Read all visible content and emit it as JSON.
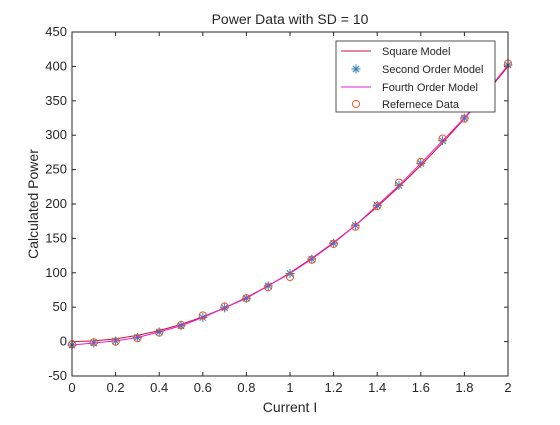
{
  "chart_data": {
    "type": "line",
    "title": "Power Data with SD = 10",
    "xlabel": "Current I",
    "ylabel": "Calculated Power",
    "xlim": [
      0,
      2
    ],
    "ylim": [
      -50,
      450
    ],
    "xticks": [
      0,
      0.2,
      0.4,
      0.6,
      0.8,
      1,
      1.2,
      1.4,
      1.6,
      1.8,
      2
    ],
    "xtick_labels": [
      "0",
      "0.2",
      "0.4",
      "0.6",
      "0.8",
      "1",
      "1.2",
      "1.4",
      "1.6",
      "1.8",
      "2"
    ],
    "yticks": [
      -50,
      0,
      50,
      100,
      150,
      200,
      250,
      300,
      350,
      400,
      450
    ],
    "ytick_labels": [
      "-50",
      "0",
      "50",
      "100",
      "150",
      "200",
      "250",
      "300",
      "350",
      "400",
      "450"
    ],
    "grid": false,
    "legend_position": "top-right",
    "x": [
      0,
      0.1,
      0.2,
      0.3,
      0.4,
      0.5,
      0.6,
      0.7,
      0.8,
      0.9,
      1.0,
      1.1,
      1.2,
      1.3,
      1.4,
      1.5,
      1.6,
      1.7,
      1.8,
      1.9,
      2.0
    ],
    "series": [
      {
        "name": "Square Model",
        "style": "line",
        "color": "#d0103a",
        "values": [
          0,
          1,
          4,
          9,
          16,
          25,
          36,
          49,
          64,
          81,
          100,
          121,
          144,
          169,
          196,
          225,
          256,
          289,
          324,
          361,
          400
        ]
      },
      {
        "name": "Second Order Model",
        "style": "asterisk",
        "color": "#2a7fb8",
        "values": [
          -5,
          -2,
          1,
          6,
          14,
          23,
          35,
          49,
          63,
          81,
          99,
          120,
          143,
          169,
          198,
          227,
          259,
          292,
          325,
          361,
          402
        ]
      },
      {
        "name": "Fourth Order Model",
        "style": "line",
        "color": "#e020d0",
        "values": [
          -5,
          -2,
          1,
          6,
          14,
          23,
          35,
          49,
          63,
          81,
          99,
          120,
          143,
          169,
          198,
          227,
          259,
          292,
          325,
          362,
          402
        ]
      },
      {
        "name": "Refernece Data",
        "style": "circle",
        "color": "#e8582a",
        "values": [
          -4,
          -1,
          0,
          5,
          13,
          24,
          38,
          51,
          63,
          79,
          94,
          119,
          142,
          167,
          197,
          231,
          261,
          295,
          324,
          360,
          404
        ]
      }
    ]
  }
}
